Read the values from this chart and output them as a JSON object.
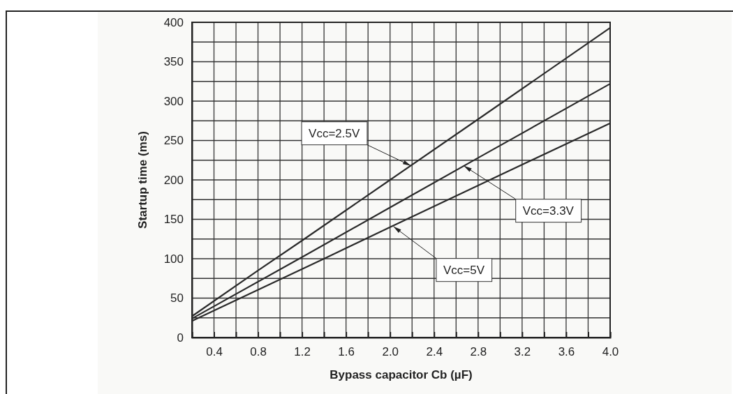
{
  "chart_data": {
    "type": "line",
    "xlabel": "Bypass capacitor Cb (µF)",
    "ylabel": "Startup time (ms)",
    "series": [
      {
        "color": "#2a2a2a",
        "x": [
          0.2,
          0.8,
          1.2,
          2.0,
          2.8,
          4.0
        ],
        "values": [
          27,
          85,
          123,
          200,
          277,
          393
        ]
      },
      {
        "color": "#2a2a2a",
        "x": [
          0.2,
          1.2,
          2.0,
          2.8,
          4.0
        ],
        "values": [
          24,
          102,
          165,
          228,
          322
        ]
      },
      {
        "color": "#2a2a2a",
        "x": [
          0.2,
          1.4,
          2.0,
          2.8,
          4.0
        ],
        "values": [
          21,
          100,
          140,
          193,
          272
        ]
      }
    ],
    "xlim": [
      0.2,
      4.0
    ],
    "xticks": [
      {
        "value": 0.2,
        "label": null
      },
      0.4,
      {
        "value": 0.6,
        "label": null
      },
      0.8,
      {
        "value": 1.0,
        "label": null
      },
      1.2,
      {
        "value": 1.4,
        "label": null
      },
      1.6,
      {
        "value": 1.8,
        "label": null
      },
      {
        "value": 2.0,
        "label": "2.0"
      },
      {
        "value": 2.2,
        "label": null
      },
      2.4,
      {
        "value": 2.6,
        "label": null
      },
      2.8,
      {
        "value": 3.0,
        "label": null
      },
      3.2,
      {
        "value": 3.4,
        "label": null
      },
      3.6,
      {
        "value": 3.8,
        "label": null
      },
      {
        "value": 4.0,
        "label": "4.0"
      }
    ],
    "ylim": [
      0,
      400
    ],
    "yticks": [
      0,
      {
        "value": 25,
        "label": null
      },
      50,
      {
        "value": 75,
        "label": null
      },
      100,
      {
        "value": 125,
        "label": null
      },
      150,
      {
        "value": 175,
        "label": null
      },
      200,
      {
        "value": 225,
        "label": null
      },
      250,
      {
        "value": 275,
        "label": null
      },
      300,
      {
        "value": 325,
        "label": null
      },
      350,
      {
        "value": 375,
        "label": null
      },
      400
    ],
    "grid": true,
    "marker": "none",
    "line_style": "solid",
    "annotations": [
      {
        "text": "Vcc=2.5V",
        "x": 2.19,
        "y": 218
      },
      {
        "text": "Vcc=3.3V",
        "x": 2.67,
        "y": 218
      },
      {
        "text": "Vcc=5V",
        "x": 2.03,
        "y": 141
      }
    ]
  }
}
